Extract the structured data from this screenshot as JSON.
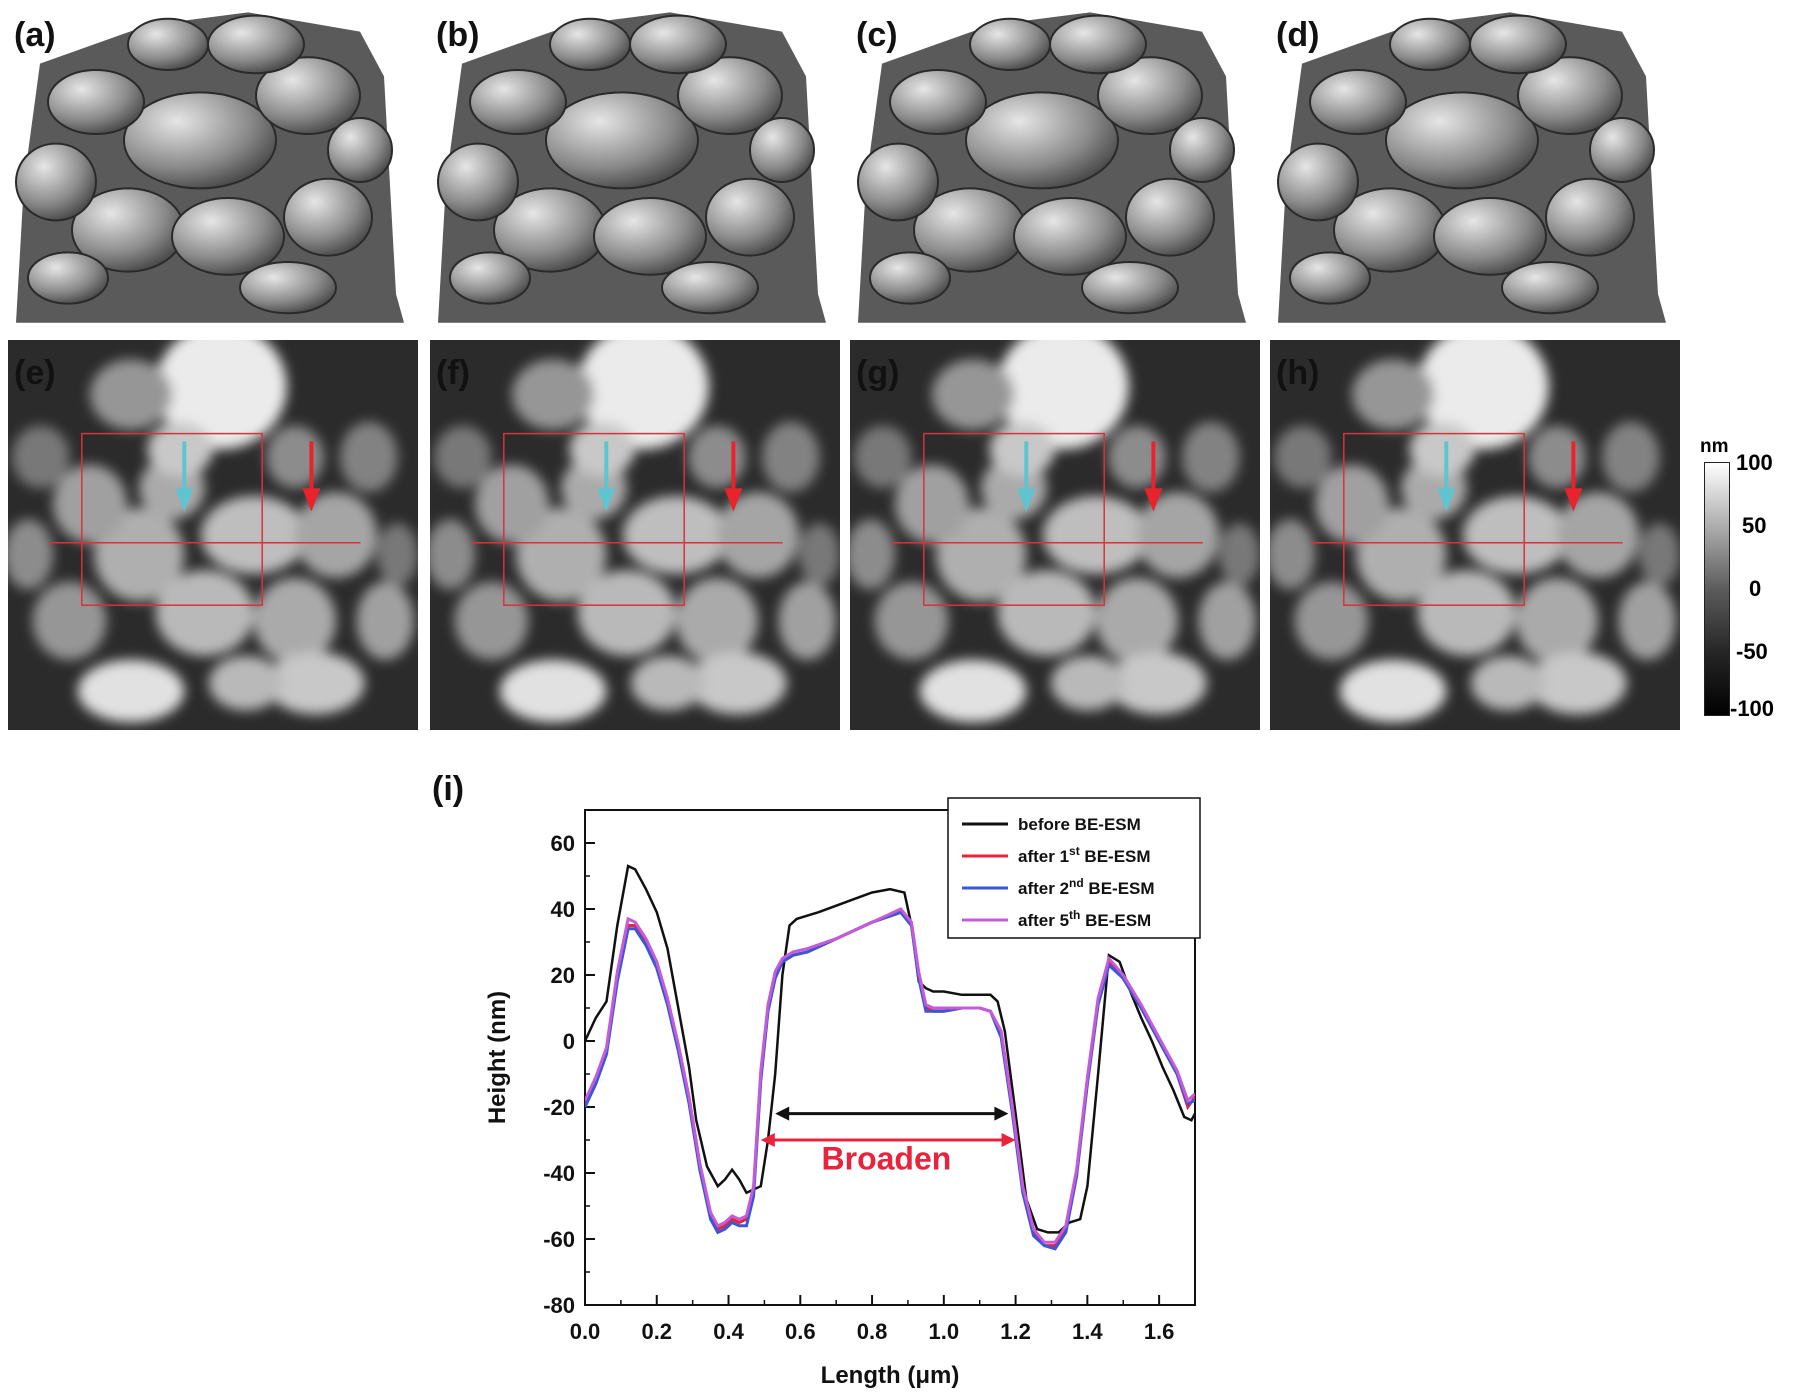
{
  "figure": {
    "panels_3d": [
      {
        "label": "(a)"
      },
      {
        "label": "(b)"
      },
      {
        "label": "(c)"
      },
      {
        "label": "(d)"
      }
    ],
    "panels_2d": [
      {
        "label": "(e)"
      },
      {
        "label": "(f)"
      },
      {
        "label": "(g)"
      },
      {
        "label": "(h)"
      }
    ],
    "colorbar": {
      "unit": "nm",
      "ticks": [
        "100",
        "50",
        "0",
        "-50",
        "-100"
      ]
    },
    "colors": {
      "marker_red": "#e8232b",
      "marker_cyan": "#5fc4d0",
      "box_red": "#d6333a"
    }
  },
  "chart_data": {
    "type": "line",
    "panel_label": "(i)",
    "xlabel": "Length (μm)",
    "ylabel": "Height (nm)",
    "xlim": [
      0.0,
      1.7
    ],
    "ylim": [
      -80,
      70
    ],
    "xticks": [
      "0.0",
      "0.2",
      "0.4",
      "0.6",
      "0.8",
      "1.0",
      "1.2",
      "1.4",
      "1.6"
    ],
    "yticks": [
      "-80",
      "-60",
      "-40",
      "-20",
      "0",
      "20",
      "40",
      "60"
    ],
    "legend_position": "top-right",
    "legend": [
      {
        "name": "before BE-ESM",
        "base": "before BE-ESM",
        "sup": "",
        "tail": "",
        "color": "#111111"
      },
      {
        "name": "after 1st BE-ESM",
        "base": "after 1",
        "sup": "st",
        "tail": " BE-ESM",
        "color": "#e8233b"
      },
      {
        "name": "after 2nd BE-ESM",
        "base": "after 2",
        "sup": "nd",
        "tail": " BE-ESM",
        "color": "#3a57d6"
      },
      {
        "name": "after 5th BE-ESM",
        "base": "after 5",
        "sup": "th",
        "tail": " BE-ESM",
        "color": "#c65bd8"
      }
    ],
    "series": [
      {
        "name": "before BE-ESM",
        "color": "#111111",
        "x": [
          0.0,
          0.03,
          0.06,
          0.09,
          0.12,
          0.14,
          0.17,
          0.2,
          0.23,
          0.26,
          0.29,
          0.31,
          0.34,
          0.37,
          0.39,
          0.41,
          0.43,
          0.45,
          0.47,
          0.49,
          0.51,
          0.53,
          0.55,
          0.57,
          0.59,
          0.62,
          0.65,
          0.7,
          0.75,
          0.8,
          0.85,
          0.89,
          0.91,
          0.93,
          0.95,
          0.97,
          1.0,
          1.05,
          1.1,
          1.13,
          1.15,
          1.17,
          1.2,
          1.23,
          1.26,
          1.29,
          1.32,
          1.35,
          1.38,
          1.4,
          1.43,
          1.46,
          1.49,
          1.52,
          1.55,
          1.58,
          1.61,
          1.64,
          1.67,
          1.69,
          1.7
        ],
        "y": [
          0,
          7,
          12,
          35,
          53,
          52,
          46,
          39,
          28,
          10,
          -8,
          -24,
          -38,
          -44,
          -42,
          -39,
          -42,
          -46,
          -45,
          -44,
          -30,
          -10,
          20,
          35,
          37,
          38,
          39,
          41,
          43,
          45,
          46,
          45,
          35,
          18,
          16,
          15,
          15,
          14,
          14,
          14,
          12,
          3,
          -22,
          -48,
          -57,
          -58,
          -58,
          -55,
          -54,
          -44,
          -10,
          26,
          24,
          15,
          7,
          0,
          -8,
          -15,
          -23,
          -24,
          -22
        ]
      },
      {
        "name": "after 1st BE-ESM",
        "color": "#e8233b",
        "x": [
          0.0,
          0.03,
          0.06,
          0.09,
          0.12,
          0.14,
          0.17,
          0.2,
          0.23,
          0.26,
          0.29,
          0.32,
          0.35,
          0.37,
          0.39,
          0.41,
          0.43,
          0.45,
          0.47,
          0.49,
          0.51,
          0.53,
          0.55,
          0.58,
          0.62,
          0.7,
          0.8,
          0.88,
          0.91,
          0.93,
          0.95,
          0.97,
          1.0,
          1.05,
          1.1,
          1.13,
          1.16,
          1.19,
          1.22,
          1.25,
          1.28,
          1.31,
          1.34,
          1.37,
          1.4,
          1.43,
          1.46,
          1.5,
          1.55,
          1.6,
          1.65,
          1.68,
          1.7
        ],
        "y": [
          -19,
          -12,
          -3,
          20,
          35,
          35,
          30,
          23,
          12,
          -2,
          -18,
          -38,
          -53,
          -57,
          -56,
          -54,
          -55,
          -54,
          -45,
          -10,
          10,
          20,
          24,
          26,
          27,
          31,
          36,
          39,
          35,
          20,
          10,
          9,
          9,
          10,
          10,
          9,
          2,
          -20,
          -45,
          -58,
          -62,
          -62,
          -57,
          -40,
          -12,
          12,
          24,
          19,
          10,
          0,
          -10,
          -20,
          -17
        ]
      },
      {
        "name": "after 2nd BE-ESM",
        "color": "#3a57d6",
        "x": [
          0.0,
          0.03,
          0.06,
          0.09,
          0.12,
          0.14,
          0.17,
          0.2,
          0.23,
          0.26,
          0.29,
          0.32,
          0.35,
          0.37,
          0.39,
          0.41,
          0.43,
          0.45,
          0.47,
          0.49,
          0.51,
          0.53,
          0.55,
          0.58,
          0.62,
          0.7,
          0.8,
          0.88,
          0.91,
          0.93,
          0.95,
          0.97,
          1.0,
          1.05,
          1.1,
          1.13,
          1.16,
          1.19,
          1.22,
          1.25,
          1.28,
          1.31,
          1.34,
          1.37,
          1.4,
          1.43,
          1.46,
          1.5,
          1.55,
          1.6,
          1.65,
          1.68,
          1.7
        ],
        "y": [
          -20,
          -13,
          -4,
          18,
          34,
          34,
          29,
          22,
          11,
          -3,
          -19,
          -39,
          -54,
          -58,
          -57,
          -55,
          -56,
          -56,
          -47,
          -12,
          9,
          19,
          24,
          26,
          27,
          31,
          36,
          39,
          35,
          19,
          9,
          9,
          9,
          10,
          10,
          9,
          1,
          -21,
          -46,
          -59,
          -62,
          -63,
          -58,
          -41,
          -13,
          11,
          23,
          19,
          10,
          0,
          -10,
          -19,
          -18
        ]
      },
      {
        "name": "after 5th BE-ESM",
        "color": "#c65bd8",
        "x": [
          0.0,
          0.03,
          0.06,
          0.09,
          0.12,
          0.14,
          0.17,
          0.2,
          0.23,
          0.26,
          0.29,
          0.32,
          0.35,
          0.37,
          0.39,
          0.41,
          0.43,
          0.45,
          0.47,
          0.49,
          0.51,
          0.53,
          0.55,
          0.58,
          0.62,
          0.7,
          0.8,
          0.88,
          0.91,
          0.93,
          0.95,
          0.97,
          1.0,
          1.05,
          1.1,
          1.13,
          1.16,
          1.19,
          1.22,
          1.25,
          1.28,
          1.31,
          1.34,
          1.37,
          1.4,
          1.43,
          1.46,
          1.5,
          1.55,
          1.6,
          1.65,
          1.68,
          1.7
        ],
        "y": [
          -18,
          -11,
          -2,
          21,
          37,
          36,
          31,
          24,
          13,
          -1,
          -17,
          -37,
          -52,
          -56,
          -55,
          -53,
          -54,
          -53,
          -44,
          -9,
          11,
          21,
          25,
          27,
          28,
          31,
          36,
          40,
          36,
          21,
          11,
          10,
          10,
          10,
          10,
          9,
          3,
          -19,
          -44,
          -57,
          -61,
          -61,
          -56,
          -39,
          -11,
          13,
          25,
          20,
          11,
          1,
          -9,
          -18,
          -16
        ]
      }
    ],
    "annotations": [
      {
        "type": "double-arrow",
        "x1": 0.53,
        "x2": 1.18,
        "y": -22,
        "color": "#111111"
      },
      {
        "type": "double-arrow",
        "x1": 0.49,
        "x2": 1.2,
        "y": -30,
        "color": "#e8233b"
      },
      {
        "type": "text",
        "text": "Broaden",
        "x": 0.84,
        "y": -39,
        "color": "#e8233b"
      }
    ]
  }
}
